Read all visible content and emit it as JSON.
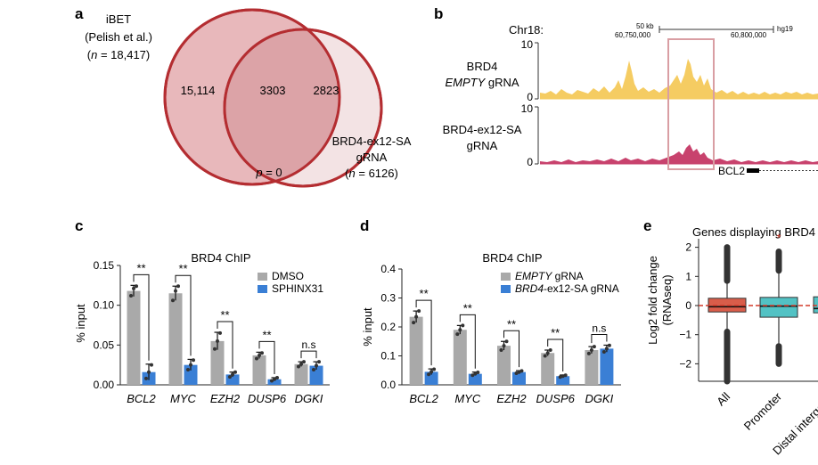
{
  "panels": {
    "a": {
      "label": "a",
      "set1": {
        "name_l1": "iBET",
        "name_l2": "(Pelish et al.)",
        "n_prefix": "n",
        "n_suffix": " = 18,417)",
        "n_open": "("
      },
      "set2": {
        "name_l1": "BRD4-ex12-SA",
        "name_l2": "gRNA",
        "n_open": "(",
        "n_prefix": "n",
        "n_suffix": " = 6126)"
      },
      "only1": "15,114",
      "overlap": "3303",
      "only2": "2823",
      "p_label": "p",
      "p_value": " = 0",
      "colors": {
        "set1_fill": "#e8b8bb",
        "set2_fill": "#f3e3e4",
        "overlap_fill": "#dca3a7",
        "stroke": "#b42d31"
      }
    },
    "b": {
      "label": "b",
      "chrom": "Chr18:",
      "scale_label": "50 kb",
      "genome": "hg19",
      "coord_left": "60,750,000",
      "coord_right": "60,800,000",
      "track1": {
        "name_l1": "BRD4",
        "name_l2_italic": "EMPTY",
        "name_l2_rest": " gRNA",
        "ymax": "10",
        "ymin": "0",
        "color": "#f5cc62"
      },
      "track2": {
        "name_l1": "BRD4-ex12-SA",
        "name_l2": "gRNA",
        "ymax": "10",
        "ymin": "0",
        "color": "#c8426d"
      },
      "gene": "BCL2",
      "highlight_color": "#d99ea3"
    },
    "c": {
      "label": "c"
    },
    "d": {
      "label": "d"
    },
    "e": {
      "label": "e"
    }
  },
  "chart_data": [
    {
      "id": "c",
      "type": "bar",
      "title": "BRD4 ChIP",
      "ylabel": "% input",
      "ylim": [
        0,
        0.15
      ],
      "yticks": [
        "0.00",
        "0.05",
        "0.10",
        "0.15"
      ],
      "categories": [
        "BCL2",
        "MYC",
        "EZH2",
        "DUSP6",
        "DGKI"
      ],
      "series": [
        {
          "name": "DMSO",
          "color": "#a9a9a9",
          "values": [
            0.118,
            0.115,
            0.055,
            0.037,
            0.026
          ],
          "errors": [
            0.007,
            0.009,
            0.011,
            0.004,
            0.003
          ],
          "points": [
            [
              0.112,
              0.121,
              0.124
            ],
            [
              0.106,
              0.118,
              0.124
            ],
            [
              0.045,
              0.055,
              0.065
            ],
            [
              0.033,
              0.037,
              0.04
            ],
            [
              0.023,
              0.026,
              0.029
            ]
          ]
        },
        {
          "name": "SPHINX31",
          "color": "#3a7fd5",
          "values": [
            0.016,
            0.025,
            0.013,
            0.007,
            0.024
          ],
          "errors": [
            0.01,
            0.007,
            0.003,
            0.002,
            0.005
          ],
          "points": [
            [
              0.008,
              0.016,
              0.025
            ],
            [
              0.019,
              0.025,
              0.031
            ],
            [
              0.01,
              0.013,
              0.016
            ],
            [
              0.005,
              0.007,
              0.009
            ],
            [
              0.019,
              0.024,
              0.029
            ]
          ]
        }
      ],
      "significance": [
        "**",
        "**",
        "**",
        "**",
        "n.s"
      ]
    },
    {
      "id": "d",
      "type": "bar",
      "title": "BRD4 ChIP",
      "ylabel": "% input",
      "ylim": [
        0,
        0.4
      ],
      "yticks": [
        "0.0",
        "0.1",
        "0.2",
        "0.3",
        "0.4"
      ],
      "categories": [
        "BCL2",
        "MYC",
        "EZH2",
        "DUSP6",
        "DGKI"
      ],
      "series": [
        {
          "name_italic": "EMPTY",
          "name_rest": " gRNA",
          "color": "#a9a9a9",
          "values": [
            0.235,
            0.19,
            0.135,
            0.11,
            0.12
          ],
          "errors": [
            0.02,
            0.015,
            0.015,
            0.01,
            0.012
          ],
          "points": [
            [
              0.215,
              0.235,
              0.255
            ],
            [
              0.175,
              0.19,
              0.205
            ],
            [
              0.12,
              0.135,
              0.15
            ],
            [
              0.1,
              0.11,
              0.12
            ],
            [
              0.108,
              0.12,
              0.132
            ]
          ]
        },
        {
          "name_italic": "BRD4",
          "name_rest": "-ex12-SA gRNA",
          "color": "#3a7fd5",
          "values": [
            0.045,
            0.038,
            0.044,
            0.03,
            0.125
          ],
          "errors": [
            0.01,
            0.006,
            0.005,
            0.004,
            0.012
          ],
          "points": [
            [
              0.036,
              0.045,
              0.054
            ],
            [
              0.033,
              0.038,
              0.043
            ],
            [
              0.04,
              0.044,
              0.048
            ],
            [
              0.027,
              0.03,
              0.033
            ],
            [
              0.114,
              0.125,
              0.136
            ]
          ]
        }
      ],
      "significance": [
        "**",
        "**",
        "**",
        "**",
        "n.s"
      ]
    },
    {
      "id": "e",
      "type": "box",
      "title": "Genes displaying BRD4",
      "ylabel_l1": "Log2 fold change",
      "ylabel_l2": "(RNAseq)",
      "ylim": [
        -2.6,
        2.6
      ],
      "yticks": [
        "2",
        "1",
        "0",
        "−1",
        "−2"
      ],
      "categories": [
        "All",
        "Promoter",
        "Distal intergenic"
      ],
      "boxes": [
        {
          "q1": -0.22,
          "median": -0.04,
          "q3": 0.25,
          "whisker_low": -0.9,
          "whisker_high": 0.85,
          "out_low": -2.6,
          "out_high": 2.0,
          "color": "#d95d4a"
        },
        {
          "q1": -0.4,
          "median": -0.02,
          "q3": 0.28,
          "whisker_low": -1.4,
          "whisker_high": 1.2,
          "out_low": -2.0,
          "out_high": 1.85,
          "color": "#52c2c4"
        },
        {
          "q1": -0.25,
          "median": -0.1,
          "q3": 0.3,
          "whisker_low": -1.0,
          "whisker_high": 1.0,
          "out_low": -1.8,
          "out_high": 1.8,
          "color": "#52c2c4"
        }
      ],
      "star": "*",
      "refline_color": "#d33a2a"
    }
  ]
}
